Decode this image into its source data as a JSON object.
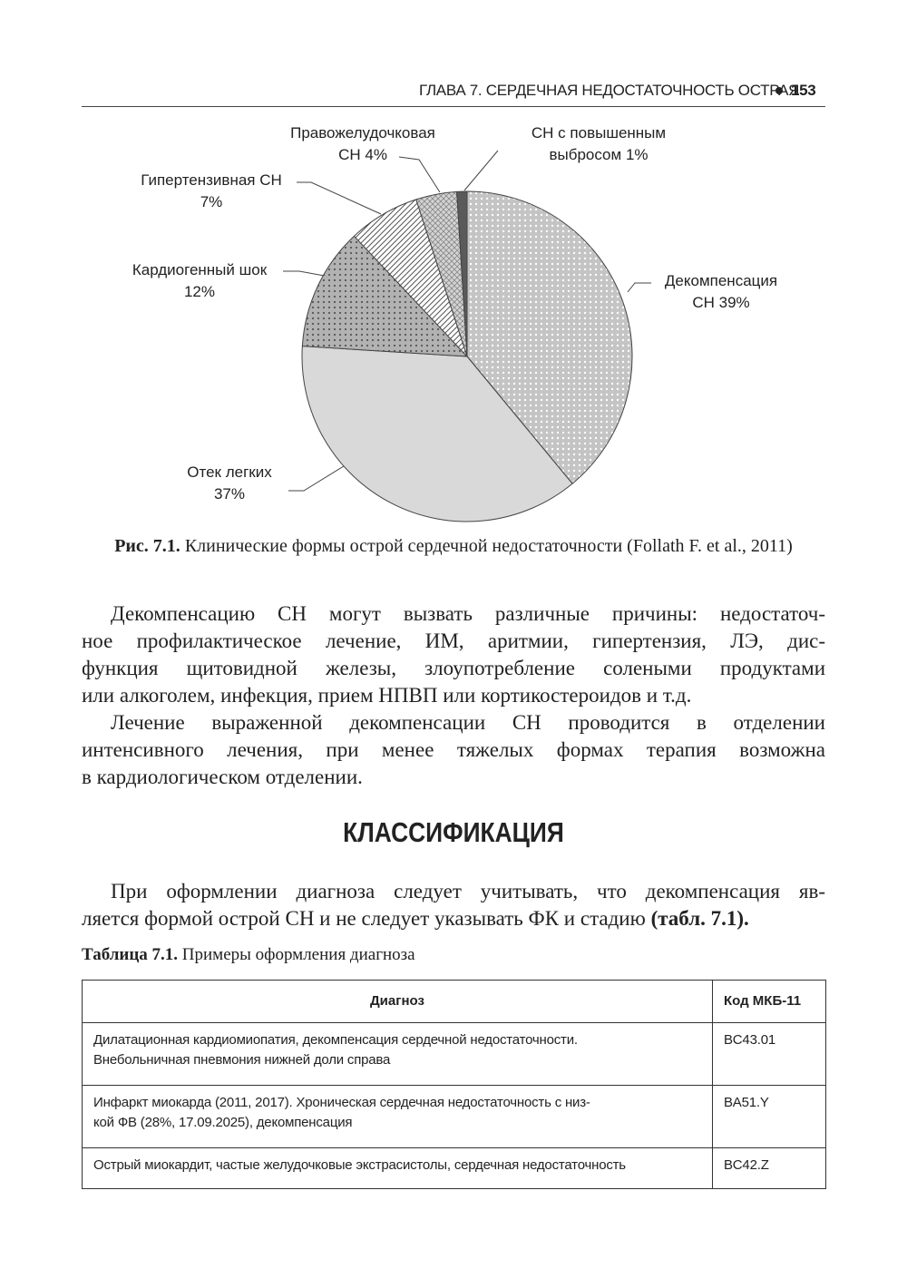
{
  "header": {
    "title": "ГЛАВА 7. СЕРДЕЧНАЯ НЕДОСТАТОЧНОСТЬ ОСТРАЯ",
    "page": "153"
  },
  "chart_data": {
    "type": "pie",
    "categories": [
      "Декомпенсация СН",
      "Отек легких",
      "Кардиогенный шок",
      "Гипертензивная СН",
      "Правожелудочковая СН",
      "СН с повышенным выбросом"
    ],
    "values": [
      39,
      37,
      12,
      7,
      4,
      1
    ],
    "value_labels": [
      "39%",
      "37%",
      "12%",
      "7%",
      "4%",
      "1%"
    ],
    "colors": [
      "#c4c4c4",
      "#d9d9d9",
      "#b2b2b2",
      "#ffffff",
      "#d4d4d4",
      "#5a5a5a"
    ]
  },
  "caption": {
    "label": "Рис. 7.1.",
    "text": "Клинические формы острой сердечной недостаточности (Follath F. et al., 2011)"
  },
  "paragraphs": [
    {
      "lines": [
        "Декомпенсацию СН могут вызвать различные причины: недостаточ-",
        "ное профилактическое лечение, ИМ, аритмии, гипертензия, ЛЭ, дис-",
        "функция щитовидной железы, злоупотребление солеными продуктами",
        "или алкоголем, инфекция, прием НПВП или кортикостероидов и т.д."
      ]
    },
    {
      "lines": [
        "Лечение выраженной декомпенсации СН проводится в отделении",
        "интенсивного лечения, при менее тяжелых формах терапия возможна",
        "в кардиологическом отделении."
      ]
    }
  ],
  "heading": "КЛАССИФИКАЦИЯ",
  "paragraph3": {
    "lines": [
      "При оформлении диагноза следует учитывать, что декомпенсация яв-",
      "ляется формой острой СН и не следует указывать ФК и стадию"
    ],
    "reference": "(табл. 7.1)."
  },
  "table": {
    "label": "Таблица 7.1.",
    "title": "Примеры оформления диагноза",
    "header": [
      "Диагноз",
      "Код МКБ-11"
    ],
    "rows": [
      [
        [
          "Дилатационная кардиомиопатия, декомпенсация сердечной недостаточности.",
          "Внебольничная пневмония нижней доли справа"
        ],
        [
          "BC43.01"
        ]
      ],
      [
        [
          "Инфаркт миокарда (2011, 2017). Хроническая сердечная недостаточность с низ-",
          "кой ФВ (28%, 17.09.2025), декомпенсация"
        ],
        [
          "BA51.Y"
        ]
      ],
      [
        [
          "Острый миокардит, частые желудочковые экстрасистолы, сердечная недостаточность"
        ],
        [
          "BC42.Z"
        ]
      ]
    ]
  }
}
